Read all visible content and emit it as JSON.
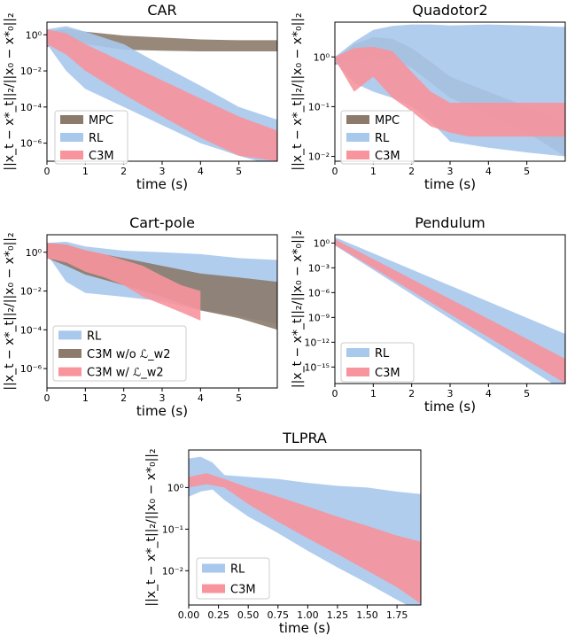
{
  "figure": {
    "ylabel_text": "||x_t − x*_t||₂/||x₀ − x*₀||₂",
    "xlabel_text": "time (s)"
  },
  "chart_data": [
    {
      "type": "area",
      "title": "CAR",
      "xlabel": "time (s)",
      "ylabel": "||x_t − x*_t||₂/||x₀ − x*₀||₂",
      "yscale": "log",
      "xlim": [
        0,
        6
      ],
      "ylim": [
        1e-07,
        5
      ],
      "xticks": [
        0,
        1,
        2,
        3,
        4,
        5
      ],
      "xtick_labels": [
        "0",
        "1",
        "2",
        "3",
        "4",
        "5"
      ],
      "yticks": [
        1,
        0.01,
        0.0001,
        1e-06
      ],
      "ytick_labels": [
        "10⁰",
        "10⁻²",
        "10⁻⁴",
        "10⁻⁶"
      ],
      "legend_position": "lower-left",
      "series": [
        {
          "name": "MPC",
          "color": "#8c7b6b",
          "x": [
            0,
            0.5,
            1,
            2,
            3,
            4,
            5,
            6
          ],
          "upper": [
            1.5,
            2.2,
            1.5,
            0.9,
            0.7,
            0.55,
            0.5,
            0.5
          ],
          "lower": [
            0.2,
            0.7,
            0.3,
            0.15,
            0.13,
            0.12,
            0.12,
            0.12
          ]
        },
        {
          "name": "RL",
          "color": "#a8c8ec",
          "x": [
            0,
            0.5,
            1,
            2,
            3,
            4,
            5,
            6
          ],
          "upper": [
            2.0,
            3.0,
            1.5,
            0.3,
            0.02,
            0.0015,
            0.0001,
            2e-05
          ],
          "lower": [
            0.3,
            0.01,
            0.001,
            0.0001,
            1e-05,
            1e-06,
            2e-07,
            5e-08
          ]
        },
        {
          "name": "C3M",
          "color": "#f7949c",
          "x": [
            0,
            0.5,
            1,
            2,
            3,
            4,
            5,
            6
          ],
          "upper": [
            2.0,
            1.2,
            0.3,
            0.03,
            0.003,
            0.0003,
            3e-05,
            5e-06
          ],
          "lower": [
            0.3,
            0.08,
            0.01,
            0.0005,
            3e-05,
            2e-06,
            2e-07,
            1e-07
          ]
        }
      ]
    },
    {
      "type": "area",
      "title": "Quadotor2",
      "xlabel": "time (s)",
      "ylabel": "||x_t − x*_t||₂/||x₀ − x*₀||₂",
      "yscale": "log",
      "xlim": [
        0,
        6
      ],
      "ylim": [
        0.008,
        5
      ],
      "xticks": [
        0,
        1,
        2,
        3,
        4,
        5
      ],
      "xtick_labels": [
        "0",
        "1",
        "2",
        "3",
        "4",
        "5"
      ],
      "yticks": [
        1,
        0.1,
        0.01
      ],
      "ytick_labels": [
        "10⁰",
        "10⁻¹",
        "10⁻²"
      ],
      "legend_position": "lower-right",
      "series": [
        {
          "name": "MPC",
          "color": "#8c7b6b",
          "x": [
            0,
            0.5,
            1,
            1.5,
            2,
            2.5,
            3,
            4,
            5,
            6
          ],
          "upper": [
            0.9,
            1.8,
            2.5,
            2.3,
            1.5,
            0.8,
            0.4,
            0.2,
            0.1,
            0.05
          ],
          "lower": [
            0.7,
            0.8,
            1.0,
            0.9,
            0.6,
            0.3,
            0.15,
            0.07,
            0.03,
            0.01
          ]
        },
        {
          "name": "RL",
          "color": "#a8c8ec",
          "x": [
            0,
            0.5,
            1,
            1.5,
            2,
            2.5,
            3,
            4,
            5,
            6
          ],
          "upper": [
            1.0,
            2.0,
            3.5,
            4.2,
            4.5,
            4.5,
            4.3,
            4.5,
            4.3,
            4.0
          ],
          "lower": [
            0.8,
            0.3,
            0.2,
            0.15,
            0.1,
            0.05,
            0.02,
            0.015,
            0.012,
            0.01
          ]
        },
        {
          "name": "C3M",
          "color": "#f7949c",
          "x": [
            0,
            0.5,
            1,
            1.5,
            2,
            2.5,
            3,
            3.5,
            4,
            5,
            6
          ],
          "upper": [
            1.0,
            1.5,
            1.6,
            1.3,
            0.5,
            0.2,
            0.12,
            0.12,
            0.12,
            0.12,
            0.12
          ],
          "lower": [
            0.9,
            0.2,
            0.4,
            0.15,
            0.08,
            0.04,
            0.03,
            0.025,
            0.025,
            0.025,
            0.025
          ]
        }
      ]
    },
    {
      "type": "area",
      "title": "Cart-pole",
      "xlabel": "time (s)",
      "ylabel": "||x_t − x*_t||₂/||x₀ − x*₀||₂",
      "yscale": "log",
      "xlim": [
        0,
        6
      ],
      "ylim": [
        1e-07,
        8
      ],
      "xticks": [
        0,
        1,
        2,
        3,
        4,
        5
      ],
      "xtick_labels": [
        "0",
        "1",
        "2",
        "3",
        "4",
        "5"
      ],
      "yticks": [
        1,
        0.01,
        0.0001,
        1e-06
      ],
      "ytick_labels": [
        "10⁰",
        "10⁻²",
        "10⁻⁴",
        "10⁻⁶"
      ],
      "legend_position": "lower-left",
      "series": [
        {
          "name": "RL",
          "color": "#a8c8ec",
          "x": [
            0,
            0.5,
            1,
            2,
            3,
            4,
            5,
            6
          ],
          "upper": [
            3.0,
            3.5,
            2.0,
            1.2,
            1.0,
            0.8,
            0.5,
            0.4
          ],
          "lower": [
            0.8,
            0.03,
            0.008,
            0.005,
            0.003,
            0.001,
            0.0005,
            0.0002
          ]
        },
        {
          "name": "C3M w/o L_w2",
          "label_html": "C3M w/o ℒ_w2",
          "color": "#8c7b6b",
          "x": [
            0,
            0.5,
            1,
            2,
            3,
            4,
            5,
            6
          ],
          "upper": [
            3.0,
            2.5,
            1.2,
            0.5,
            0.2,
            0.08,
            0.05,
            0.03
          ],
          "lower": [
            0.5,
            0.2,
            0.07,
            0.02,
            0.005,
            0.001,
            0.0004,
            0.0001
          ]
        },
        {
          "name": "C3M w/ L_w2",
          "label_html": "C3M w/ ℒ_w2",
          "color": "#f7949c",
          "x": [
            0,
            0.5,
            1,
            1.5,
            2,
            2.5,
            3,
            3.5,
            4
          ],
          "upper": [
            3.0,
            2.5,
            1.3,
            0.8,
            0.4,
            0.2,
            0.06,
            0.02,
            0.01
          ],
          "lower": [
            0.5,
            0.3,
            0.1,
            0.05,
            0.02,
            0.005,
            0.002,
            0.0008,
            0.0003
          ]
        }
      ]
    },
    {
      "type": "area",
      "title": "Pendulum",
      "xlabel": "time (s)",
      "ylabel": "||x_t − x*_t||₂/||x₀ − x*₀||₂",
      "yscale": "log",
      "xlim": [
        0,
        6
      ],
      "ylim": [
        1e-17,
        10
      ],
      "xticks": [
        0,
        1,
        2,
        3,
        4,
        5
      ],
      "xtick_labels": [
        "0",
        "1",
        "2",
        "3",
        "4",
        "5"
      ],
      "yticks": [
        1,
        0.001,
        1e-06,
        1e-09,
        1e-12,
        1e-15
      ],
      "ytick_labels": [
        "10⁰",
        "10⁻³",
        "10⁻⁶",
        "10⁻⁹",
        "10⁻¹²",
        "10⁻¹⁵"
      ],
      "legend_position": "lower-left",
      "series": [
        {
          "name": "RL",
          "color": "#a8c8ec",
          "x": [
            0,
            6
          ],
          "upper": [
            5,
            1e-11
          ],
          "lower": [
            0.5,
            1e-18
          ]
        },
        {
          "name": "C3M",
          "color": "#f7949c",
          "x": [
            0,
            6
          ],
          "upper": [
            3,
            1e-14
          ],
          "lower": [
            0.6,
            1e-17
          ]
        }
      ]
    },
    {
      "type": "area",
      "title": "TLPRA",
      "xlabel": "time (s)",
      "ylabel": "||x_t − x*_t||₂/||x₀ − x*₀||₂",
      "yscale": "log",
      "xlim": [
        0,
        1.95
      ],
      "ylim": [
        0.0015,
        8
      ],
      "xticks": [
        0,
        0.25,
        0.5,
        0.75,
        1.0,
        1.25,
        1.5,
        1.75
      ],
      "xtick_labels": [
        "0.00",
        "0.25",
        "0.50",
        "0.75",
        "1.00",
        "1.25",
        "1.50",
        "1.75"
      ],
      "yticks": [
        1,
        0.1,
        0.01
      ],
      "ytick_labels": [
        "10⁰",
        "10⁻¹",
        "10⁻²"
      ],
      "legend_position": "lower-left",
      "series": [
        {
          "name": "RL",
          "color": "#a8c8ec",
          "x": [
            0,
            0.1,
            0.2,
            0.3,
            0.5,
            0.75,
            1.0,
            1.25,
            1.5,
            1.75,
            1.95
          ],
          "upper": [
            5.0,
            5.5,
            4.0,
            2.0,
            1.8,
            1.6,
            1.3,
            1.1,
            1.0,
            0.8,
            0.7
          ],
          "lower": [
            0.6,
            0.8,
            0.9,
            0.5,
            0.2,
            0.08,
            0.03,
            0.012,
            0.005,
            0.002,
            0.001
          ]
        },
        {
          "name": "C3M",
          "color": "#f7949c",
          "x": [
            0,
            0.15,
            0.3,
            0.5,
            0.75,
            1.0,
            1.25,
            1.5,
            1.75,
            1.95
          ],
          "upper": [
            1.8,
            2.2,
            1.6,
            1.0,
            0.6,
            0.35,
            0.2,
            0.12,
            0.07,
            0.05
          ],
          "lower": [
            1.0,
            1.2,
            1.0,
            0.4,
            0.15,
            0.06,
            0.025,
            0.01,
            0.004,
            0.0016
          ]
        }
      ]
    }
  ]
}
